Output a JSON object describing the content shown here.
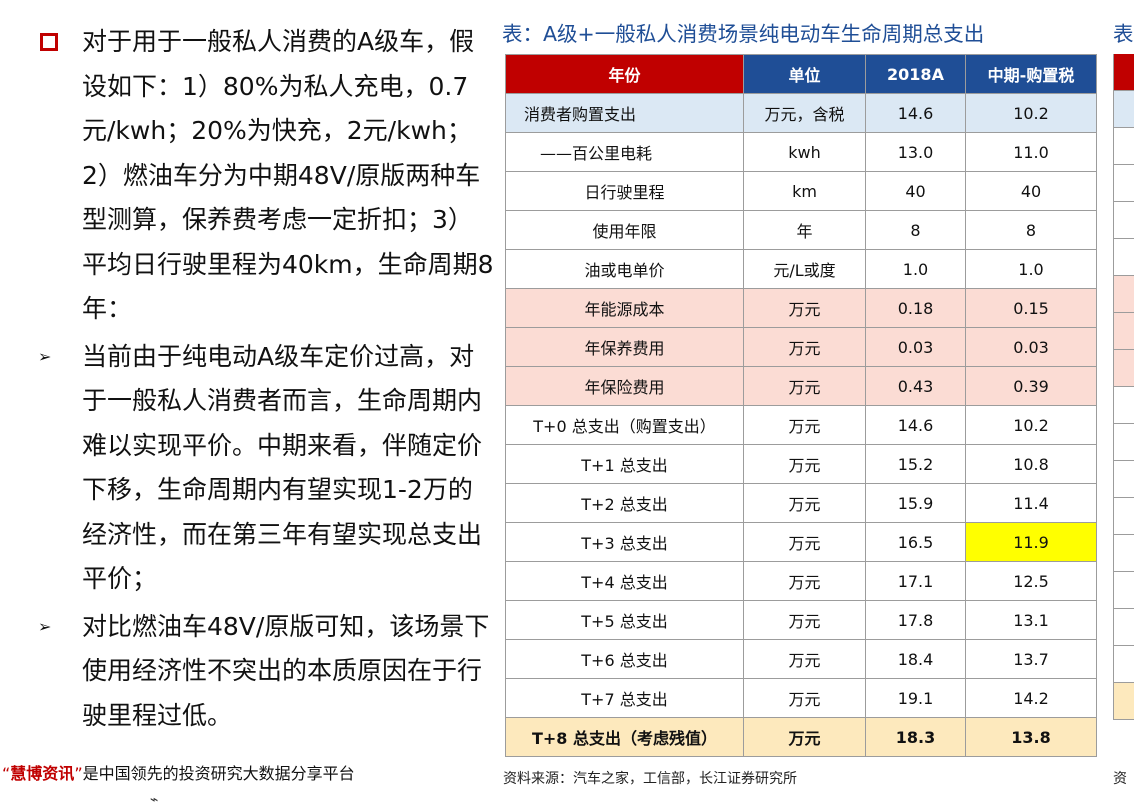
{
  "bullets": [
    {
      "type": "square",
      "text": "对于用于一般私人消费的A级车，假设如下：1）80%为私人充电，0.7元/kwh；20%为快充，2元/kwh；2）燃油车分为中期48V/原版两种车型测算，保养费考虑一定折扣；3）平均日行驶里程为40km，生命周期8年："
    },
    {
      "type": "arrow",
      "text": "当前由于纯电动A级车定价过高，对于一般私人消费者而言，生命周期内难以实现平价。中期来看，伴随定价下移，生命周期内有望实现1-2万的经济性，而在第三年有望实现总支出平价；"
    },
    {
      "type": "arrow",
      "text": "对比燃油车48V/原版可知，该场景下使用经济性不突出的本质原因在于行驶里程过低。"
    }
  ],
  "footer": {
    "quote_open": "“",
    "brand": "慧博资讯",
    "quote_close": "”",
    "text": "是中国领先的投资研究大数据分享平台"
  },
  "table": {
    "title": "表：A级+一般私人消费场景纯电动车生命周期总支出",
    "headers": [
      "年份",
      "单位",
      "2018A",
      "中期-购置税"
    ],
    "rows": [
      {
        "style": "blue",
        "align": "left",
        "cells": [
          "消费者购置支出",
          "万元，含税",
          "14.6",
          "10.2"
        ]
      },
      {
        "style": "white",
        "align": "ind",
        "cells": [
          "——百公里电耗",
          "kwh",
          "13.0",
          "11.0"
        ]
      },
      {
        "style": "white",
        "align": "center",
        "cells": [
          "日行驶里程",
          "km",
          "40",
          "40"
        ]
      },
      {
        "style": "white",
        "align": "center",
        "cells": [
          "使用年限",
          "年",
          "8",
          "8"
        ]
      },
      {
        "style": "white",
        "align": "center",
        "cells": [
          "油或电单价",
          "元/L或度",
          "1.0",
          "1.0"
        ]
      },
      {
        "style": "pink",
        "align": "center",
        "cells": [
          "年能源成本",
          "万元",
          "0.18",
          "0.15"
        ]
      },
      {
        "style": "pink",
        "align": "center",
        "cells": [
          "年保养费用",
          "万元",
          "0.03",
          "0.03"
        ]
      },
      {
        "style": "pink",
        "align": "center",
        "cells": [
          "年保险费用",
          "万元",
          "0.43",
          "0.39"
        ]
      },
      {
        "style": "white",
        "align": "center",
        "cells": [
          "T+0 总支出（购置支出）",
          "万元",
          "14.6",
          "10.2"
        ]
      },
      {
        "style": "white",
        "align": "center",
        "cells": [
          "T+1 总支出",
          "万元",
          "15.2",
          "10.8"
        ]
      },
      {
        "style": "white",
        "align": "center",
        "cells": [
          "T+2 总支出",
          "万元",
          "15.9",
          "11.4"
        ]
      },
      {
        "style": "white",
        "align": "center",
        "highlight": 3,
        "cells": [
          "T+3 总支出",
          "万元",
          "16.5",
          "11.9"
        ]
      },
      {
        "style": "white",
        "align": "center",
        "cells": [
          "T+4 总支出",
          "万元",
          "17.1",
          "12.5"
        ]
      },
      {
        "style": "white",
        "align": "center",
        "cells": [
          "T+5 总支出",
          "万元",
          "17.8",
          "13.1"
        ]
      },
      {
        "style": "white",
        "align": "center",
        "cells": [
          "T+6 总支出",
          "万元",
          "18.4",
          "13.7"
        ]
      },
      {
        "style": "white",
        "align": "center",
        "cells": [
          "T+7 总支出",
          "万元",
          "19.1",
          "14.2"
        ]
      },
      {
        "style": "final",
        "align": "center",
        "cells": [
          "T+8 总支出（考虑残值）",
          "万元",
          "18.3",
          "13.8"
        ]
      }
    ],
    "source": "资料来源：汽车之家，工信部，长江证券研究所"
  },
  "next_panel": {
    "title_fragment": "表",
    "source_fragment": "资"
  },
  "colors": {
    "accent_red": "#c00000",
    "header_blue": "#1f4e96",
    "highlight_yellow": "#ffff00"
  }
}
